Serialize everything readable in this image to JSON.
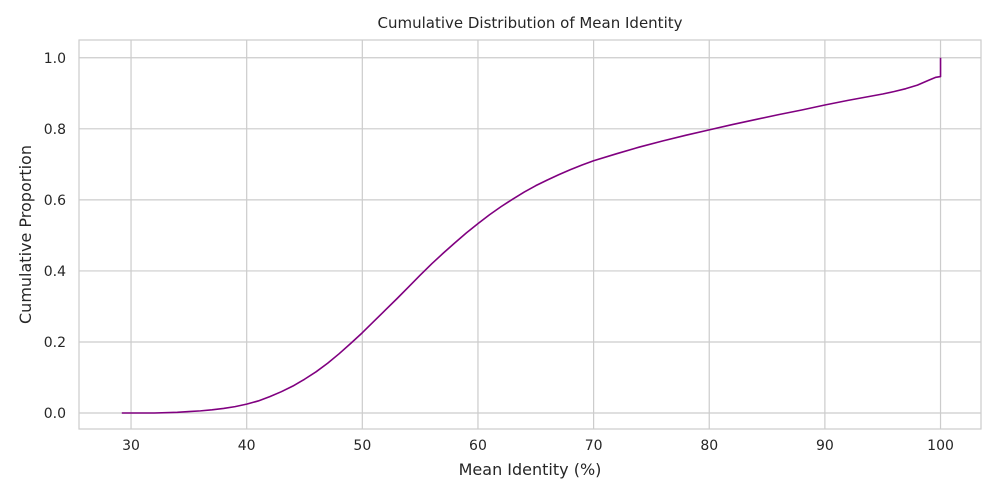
{
  "chart_data": {
    "type": "line",
    "title": "Cumulative Distribution of Mean Identity",
    "xlabel": "Mean Identity (%)",
    "ylabel": "Cumulative Proportion",
    "xlim": [
      25.5,
      103.5
    ],
    "ylim": [
      -0.045,
      1.05
    ],
    "xticks": [
      30,
      40,
      50,
      60,
      70,
      80,
      90,
      100
    ],
    "yticks": [
      0.0,
      0.2,
      0.4,
      0.6,
      0.8,
      1.0
    ],
    "xtick_labels": [
      "30",
      "40",
      "50",
      "60",
      "70",
      "80",
      "90",
      "100"
    ],
    "ytick_labels": [
      "0.0",
      "0.2",
      "0.4",
      "0.6",
      "0.8",
      "1.0"
    ],
    "grid": true,
    "line_color": "#800080",
    "grid_color": "#cccccc",
    "series": [
      {
        "x": [
          29.2,
          30,
          32,
          34,
          35,
          36,
          37,
          38,
          39,
          40,
          41,
          42,
          43,
          44,
          45,
          46,
          47,
          48,
          49,
          50,
          51,
          52,
          53,
          54,
          55,
          56,
          57,
          58,
          59,
          60,
          61,
          62,
          63,
          64,
          65,
          66,
          67,
          68,
          69,
          70,
          72,
          74,
          76,
          78,
          80,
          82,
          84,
          86,
          88,
          90,
          92,
          94,
          95,
          96,
          97,
          98,
          99,
          99.6,
          100,
          100
        ],
        "y": [
          0.0,
          0.0,
          0.0,
          0.002,
          0.004,
          0.006,
          0.009,
          0.013,
          0.018,
          0.025,
          0.034,
          0.046,
          0.06,
          0.076,
          0.095,
          0.116,
          0.14,
          0.167,
          0.196,
          0.226,
          0.258,
          0.29,
          0.322,
          0.355,
          0.388,
          0.42,
          0.45,
          0.479,
          0.507,
          0.533,
          0.558,
          0.581,
          0.602,
          0.622,
          0.64,
          0.656,
          0.671,
          0.685,
          0.698,
          0.71,
          0.73,
          0.749,
          0.766,
          0.782,
          0.797,
          0.812,
          0.826,
          0.84,
          0.853,
          0.867,
          0.88,
          0.892,
          0.898,
          0.905,
          0.913,
          0.923,
          0.937,
          0.945,
          0.947,
          1.0
        ]
      }
    ]
  }
}
